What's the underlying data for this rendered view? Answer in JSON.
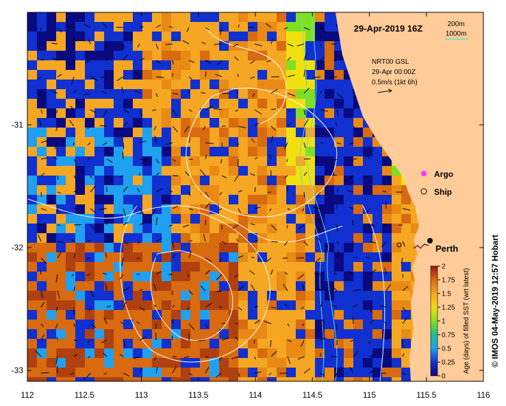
{
  "map": {
    "title": "29-Apr-2019 16Z",
    "contour_legend": {
      "line1": "200m",
      "line2": "1000m",
      "color": "#66d9d0"
    },
    "current_note": {
      "line1": "NRT00 GSL",
      "line2": "29-Apr 00:00Z",
      "line3": "0.5m/s (1kt 6h)"
    },
    "markers": {
      "argo": "Argo",
      "ship": "Ship",
      "city": "Perth"
    },
    "lon_ticks": [
      "112",
      "112.5",
      "113",
      "113.5",
      "114",
      "114.5",
      "115",
      "115.5",
      "116"
    ],
    "lat_ticks": [
      "-31",
      "-32",
      "-33"
    ],
    "colorbar": {
      "label": "Age (days) of filled SST (wrt latest)",
      "ticks": [
        "0",
        "0.25",
        "0.5",
        "0.75",
        "1",
        "1.25",
        "1.5",
        "1.75",
        "2"
      ],
      "range": [
        0,
        2
      ]
    },
    "credit": "© IMOS 04-May-2019 12:57 Hobart",
    "colors": {
      "land": "#ffcc99",
      "ocean_old": "#f5a623",
      "ocean_new": "#0a1a8c",
      "argo": "#ff33ff"
    }
  }
}
